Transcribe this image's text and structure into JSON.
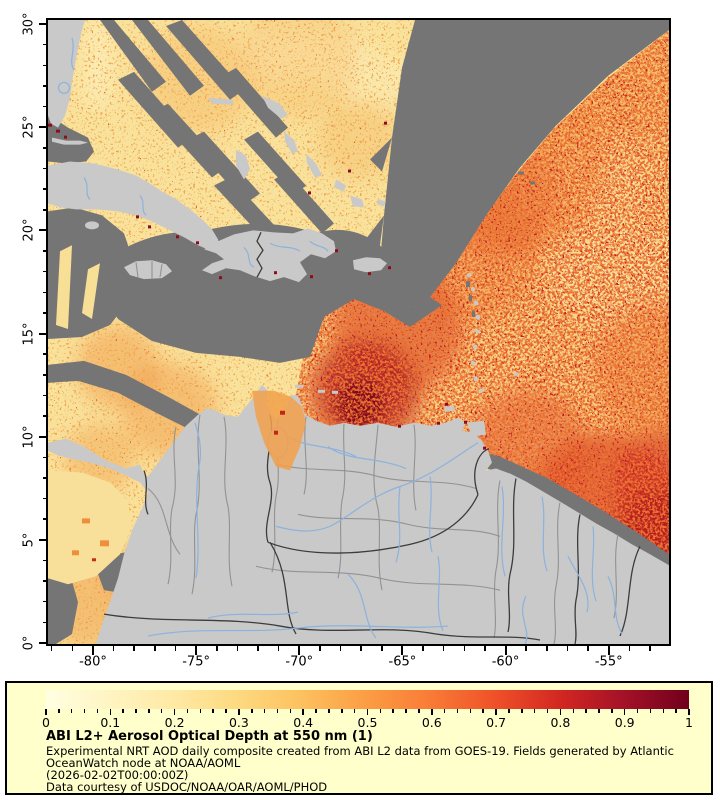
{
  "map": {
    "lat_axis": {
      "ticks": [
        {
          "label": "30°",
          "value": 30
        },
        {
          "label": "25°",
          "value": 25
        },
        {
          "label": "20°",
          "value": 20
        },
        {
          "label": "15°",
          "value": 15
        },
        {
          "label": "10°",
          "value": 10
        },
        {
          "label": "5°",
          "value": 5
        },
        {
          "label": "0°",
          "value": 0
        }
      ]
    },
    "lon_axis": {
      "ticks": [
        {
          "label": "-80°",
          "value": -80
        },
        {
          "label": "-75°",
          "value": -75
        },
        {
          "label": "-70°",
          "value": -70
        },
        {
          "label": "-65°",
          "value": -65
        },
        {
          "label": "-60°",
          "value": -60
        },
        {
          "label": "-55°",
          "value": -55
        }
      ]
    }
  },
  "legend": {
    "background": "#ffffcc",
    "title": "ABI L2+ Aerosol Optical Depth at 550 nm (1)",
    "lines": [
      "Experimental NRT AOD daily composite created from ABI L2 data from GOES-19. Fields generated by Atlantic",
      "OceanWatch node at NOAA/AOML",
      "(2026-02-02T00:00:00Z)",
      "Data courtesy of USDOC/NOAA/OAR/AOML/PHOD"
    ],
    "colorbar": {
      "min": 0,
      "max": 1,
      "tick_labels": [
        "0",
        "0.1",
        "0.2",
        "0.3",
        "0.4",
        "0.5",
        "0.6",
        "0.7",
        "0.8",
        "0.9",
        "1"
      ],
      "gradient": [
        "#ffffe2",
        "#fff4c2",
        "#ffe9a4",
        "#fed97f",
        "#fdc05e",
        "#fc9c44",
        "#f97a36",
        "#ef5028",
        "#d22722",
        "#a31127",
        "#70001c"
      ]
    }
  },
  "colors": {
    "no_data_gray": "#757575",
    "land_gray": "#c9c9c9",
    "river_blue": "#8cb2dd",
    "border_gray": "#929292",
    "border_black": "#3c3c3c",
    "field_pale_yellow": "#f9e29c",
    "field_orange": "#f2a04c",
    "field_red": "#d6391e",
    "field_dark_red": "#70021a"
  },
  "chart_data": {
    "type": "heatmap",
    "title": "ABI L2+ Aerosol Optical Depth at 550 nm (1)",
    "subtitle": "Experimental NRT AOD daily composite created from ABI L2 data from GOES-19. Fields generated by Atlantic OceanWatch node at NOAA/AOML",
    "timestamp": "(2026-02-02T00:00:00Z)",
    "credit": "Data courtesy of USDOC/NOAA/OAR/AOML/PHOD",
    "colorbar_values": [
      0,
      0.1,
      0.2,
      0.3,
      0.4,
      0.5,
      0.6,
      0.7,
      0.8,
      0.9,
      1
    ],
    "value_range": [
      0,
      1
    ],
    "geo_extent": {
      "lon": [
        -82.2,
        -52.0
      ],
      "lat": [
        0,
        30.3
      ]
    },
    "lat_ticks": [
      0,
      5,
      10,
      15,
      20,
      25,
      30
    ],
    "lon_ticks": [
      -80,
      -75,
      -70,
      -65,
      -60,
      -55
    ],
    "regions": [
      {
        "area": "southern Caribbean off Venezuela (12-15N, 64-69W)",
        "aod": "0.6-1.0 dense red plume with dark-red core"
      },
      {
        "area": "tropical Atlantic east of Lesser Antilles",
        "aod": "0.2-0.6 orange field, red 0.6-0.9 band along Guyana/Suriname coast"
      },
      {
        "area": "Gulf of Mexico, Bahamas, NW Caribbean, E Pacific",
        "aod": "0.05-0.3 pale yellow with orange speckle"
      },
      {
        "area": "NW Atlantic diagonal swath, central Caribbean around Greater Antilles, coastal strips",
        "aod": "no data (gray)"
      },
      {
        "area": "land (Florida, Cuba, Jamaica, Hispaniola, Puerto Rico, South America)",
        "aod": "masked light gray with borders and rivers; data patches over NW Colombia and Guajira/Maracaibo"
      }
    ]
  }
}
